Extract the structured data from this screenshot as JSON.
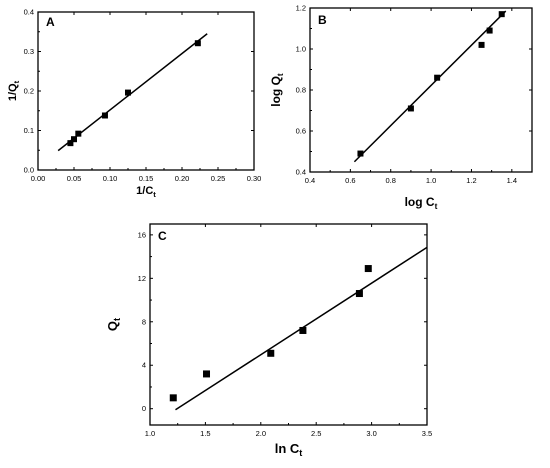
{
  "chart_data": [
    {
      "type": "scatter",
      "panel": "A",
      "xlabel": "1/C",
      "xlabel_sub": "t",
      "ylabel": "1/Q",
      "ylabel_sub": "t",
      "xlim": [
        0.0,
        0.3
      ],
      "ylim": [
        0.0,
        0.4
      ],
      "xticks": [
        0.0,
        0.05,
        0.1,
        0.15,
        0.2,
        0.25,
        0.3
      ],
      "xtick_labels": [
        "0.00",
        "0.05",
        "0.10",
        "0.15",
        "0.20",
        "0.25",
        "0.30"
      ],
      "yticks": [
        0.0,
        0.1,
        0.2,
        0.3,
        0.4
      ],
      "ytick_labels": [
        "0.0",
        "0.1",
        "0.2",
        "0.3",
        "0.4"
      ],
      "points": [
        {
          "x": 0.045,
          "y": 0.068
        },
        {
          "x": 0.05,
          "y": 0.078
        },
        {
          "x": 0.056,
          "y": 0.092
        },
        {
          "x": 0.093,
          "y": 0.138
        },
        {
          "x": 0.125,
          "y": 0.196
        },
        {
          "x": 0.222,
          "y": 0.321
        }
      ],
      "fit": {
        "x": [
          0.028,
          0.235
        ],
        "y": [
          0.049,
          0.345
        ]
      },
      "grid": false
    },
    {
      "type": "scatter",
      "panel": "B",
      "xlabel": "log C",
      "xlabel_sub": "t",
      "ylabel": "log Q",
      "ylabel_sub": "t",
      "xlim": [
        0.4,
        1.5
      ],
      "ylim": [
        0.4,
        1.2
      ],
      "xticks": [
        0.4,
        0.6,
        0.8,
        1.0,
        1.2,
        1.4
      ],
      "xtick_labels": [
        "0.4",
        "0.6",
        "0.8",
        "1.0",
        "1.2",
        "1.4"
      ],
      "yticks": [
        0.4,
        0.6,
        0.8,
        1.0,
        1.2
      ],
      "ytick_labels": [
        "0.4",
        "0.6",
        "0.8",
        "1.0",
        "1.2"
      ],
      "points": [
        {
          "x": 0.65,
          "y": 0.49
        },
        {
          "x": 0.9,
          "y": 0.71
        },
        {
          "x": 1.03,
          "y": 0.86
        },
        {
          "x": 1.25,
          "y": 1.02
        },
        {
          "x": 1.29,
          "y": 1.09
        },
        {
          "x": 1.35,
          "y": 1.17
        }
      ],
      "fit": {
        "x": [
          0.62,
          1.37
        ],
        "y": [
          0.45,
          1.185
        ]
      },
      "grid": false
    },
    {
      "type": "scatter",
      "panel": "C",
      "xlabel": "ln C",
      "xlabel_sub": "t",
      "ylabel": "Q",
      "ylabel_sub": "t",
      "xlim": [
        1.0,
        3.5
      ],
      "ylim": [
        -1.5,
        17
      ],
      "xticks": [
        1.0,
        1.5,
        2.0,
        2.5,
        3.0,
        3.5
      ],
      "xtick_labels": [
        "1.0",
        "1.5",
        "2.0",
        "2.5",
        "3.0",
        "3.5"
      ],
      "yticks": [
        0,
        4,
        8,
        12,
        16
      ],
      "ytick_labels": [
        "0",
        "4",
        "8",
        "12",
        "16"
      ],
      "points": [
        {
          "x": 1.21,
          "y": 1.0
        },
        {
          "x": 1.51,
          "y": 3.2
        },
        {
          "x": 2.09,
          "y": 5.1
        },
        {
          "x": 2.38,
          "y": 7.2
        },
        {
          "x": 2.89,
          "y": 10.6
        },
        {
          "x": 2.97,
          "y": 12.9
        }
      ],
      "fit": {
        "x": [
          1.23,
          3.5
        ],
        "y": [
          -0.1,
          14.85
        ]
      },
      "grid": false
    }
  ]
}
